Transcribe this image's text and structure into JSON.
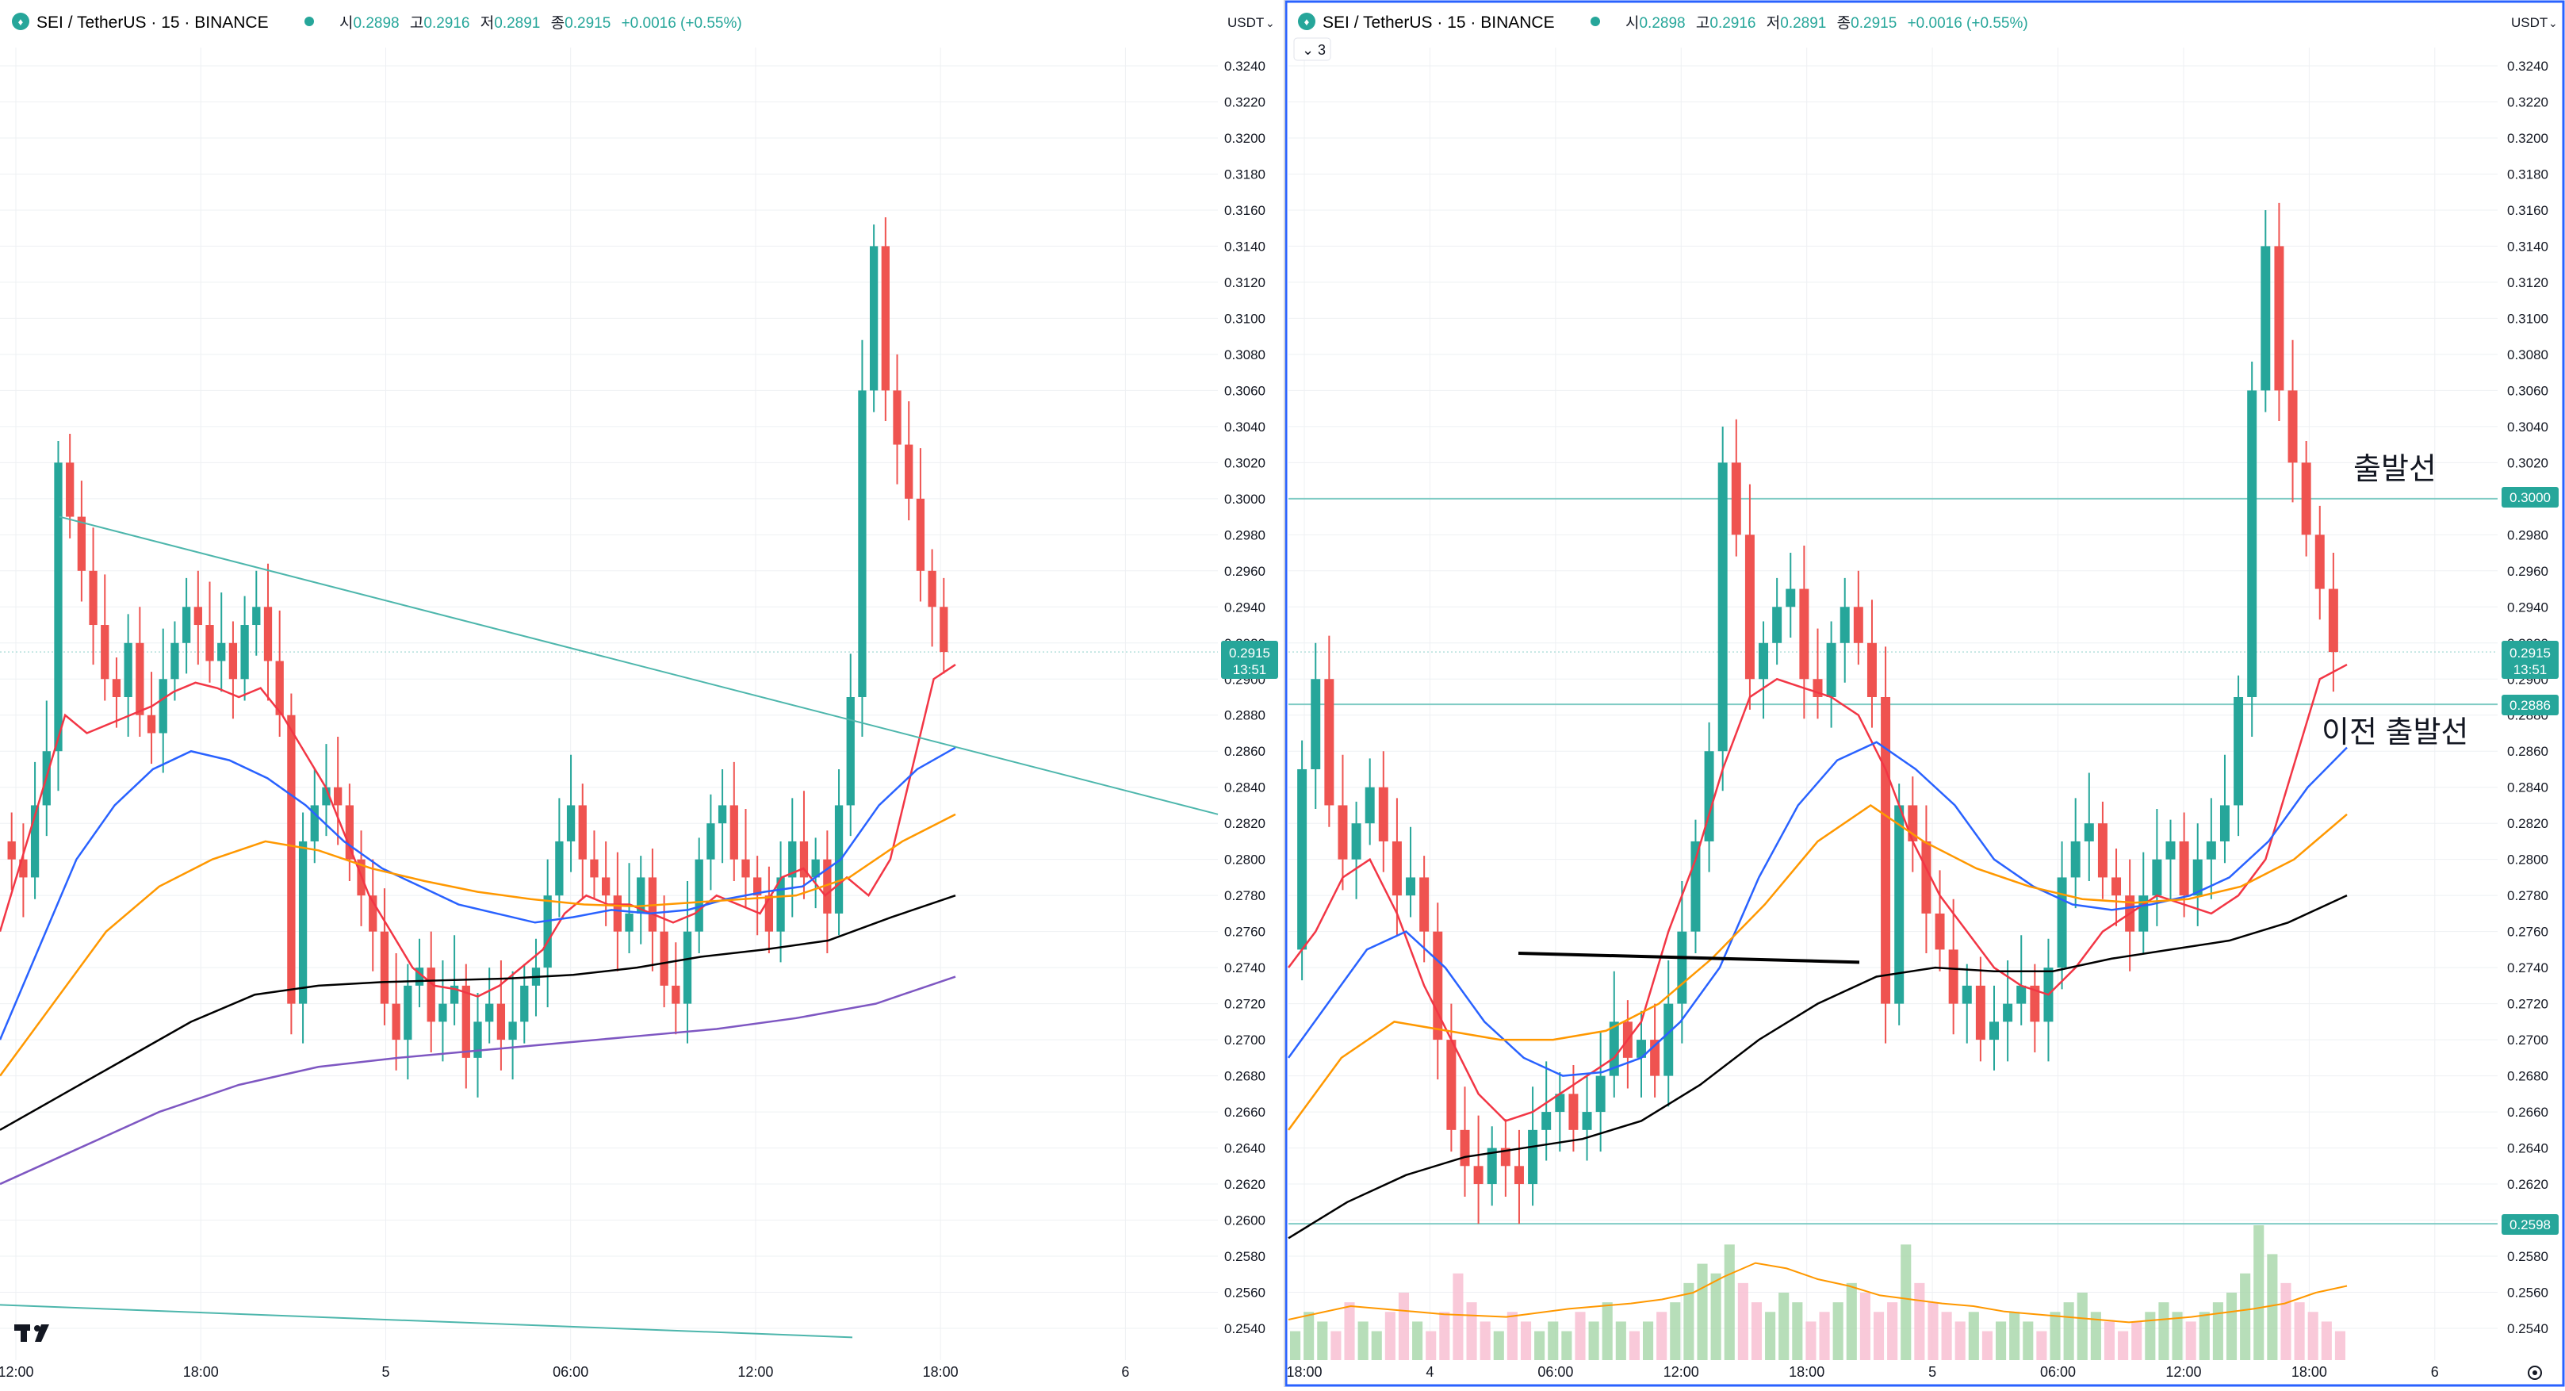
{
  "colors": {
    "up": "#26a69a",
    "down": "#ef5350",
    "grid": "#eef0f3",
    "axis_text": "#131722",
    "ma_red": "#f23645",
    "ma_blue": "#2962ff",
    "ma_orange": "#ff9800",
    "ma_black": "#000000",
    "ma_purple": "#7e57c2",
    "trend_line": "#4db6ac",
    "hline": "#80cbc4",
    "active_border": "#2962ff",
    "price_tag": "#26a69a"
  },
  "panes": [
    {
      "id": "left",
      "legend": {
        "symbol": "SEI",
        "pair": "TetherUS",
        "interval": "15",
        "exchange": "BINANCE",
        "open_label": "시",
        "open": "0.2898",
        "high_label": "고",
        "high": "0.2916",
        "low_label": "저",
        "low": "0.2891",
        "close_label": "종",
        "close": "0.2915",
        "change": "+0.0016 (+0.55%)"
      },
      "currency": "USDT",
      "price_tag": {
        "price": "0.2915",
        "countdown": "13:51"
      },
      "x_ticks": [
        "12:00",
        "18:00",
        "5",
        "06:00",
        "12:00",
        "18:00",
        "6"
      ],
      "logo": "tradingview-logo-icon"
    },
    {
      "id": "right",
      "legend": {
        "symbol": "SEI",
        "pair": "TetherUS",
        "interval": "15",
        "exchange": "BINANCE",
        "open_label": "시",
        "open": "0.2898",
        "high_label": "고",
        "high": "0.2916",
        "low_label": "저",
        "low": "0.2891",
        "close_label": "종",
        "close": "0.2915",
        "change": "+0.0016 (+0.55%)"
      },
      "indicator_toggle": "3",
      "currency": "USDT",
      "price_tag": {
        "price": "0.2915",
        "countdown": "13:51"
      },
      "level_tags": [
        "0.3000",
        "0.2886",
        "0.2598"
      ],
      "annotations": [
        "출발선",
        "이전 출발선"
      ],
      "x_ticks": [
        "18:00",
        "4",
        "06:00",
        "12:00",
        "18:00",
        "5",
        "06:00",
        "12:00",
        "18:00",
        "6"
      ]
    }
  ],
  "chart_data": [
    {
      "type": "candlestick",
      "pane": "left",
      "title": "SEI / TetherUS · 15 · BINANCE",
      "ylim": [
        0.253,
        0.326
      ],
      "y_ticks": [],
      "x_ticks": [
        "12:00",
        "18:00",
        "5",
        "06:00",
        "12:00",
        "18:00",
        "6"
      ],
      "price_line": 0.2915,
      "price_series": [
        0.281,
        0.28,
        0.279,
        0.283,
        0.286,
        0.302,
        0.299,
        0.296,
        0.293,
        0.29,
        0.289,
        0.292,
        0.288,
        0.287,
        0.29,
        0.292,
        0.294,
        0.293,
        0.291,
        0.292,
        0.29,
        0.293,
        0.294,
        0.291,
        0.288,
        0.272,
        0.281,
        0.283,
        0.284,
        0.283,
        0.28,
        0.278,
        0.276,
        0.272,
        0.27,
        0.273,
        0.274,
        0.271,
        0.272,
        0.273,
        0.269,
        0.271,
        0.272,
        0.27,
        0.271,
        0.273,
        0.274,
        0.278,
        0.281,
        0.283,
        0.28,
        0.279,
        0.278,
        0.276,
        0.277,
        0.279,
        0.276,
        0.273,
        0.272,
        0.276,
        0.28,
        0.282,
        0.283,
        0.28,
        0.279,
        0.278,
        0.276,
        0.279,
        0.281,
        0.279,
        0.28,
        0.277,
        0.283,
        0.289,
        0.306,
        0.314,
        0.306,
        0.303,
        0.3,
        0.296,
        0.294,
        0.2915
      ],
      "series": [
        {
          "name": "",
          "color_key": "ma_red",
          "values": [
            0.276,
            0.28,
            0.284,
            0.288,
            0.287,
            0.2875,
            0.288,
            0.2885,
            0.2893,
            0.2898,
            0.2895,
            0.289,
            0.2895,
            0.288,
            0.286,
            0.284,
            0.281,
            0.278,
            0.276,
            0.274,
            0.273,
            0.2728,
            0.2724,
            0.273,
            0.274,
            0.275,
            0.277,
            0.278,
            0.2775,
            0.2775,
            0.277,
            0.2765,
            0.277,
            0.278,
            0.2775,
            0.277,
            0.279,
            0.2795,
            0.278,
            0.279,
            0.278,
            0.28,
            0.285,
            0.29,
            0.2908
          ]
        },
        {
          "name": "",
          "color_key": "ma_blue",
          "values": [
            0.27,
            0.275,
            0.28,
            0.283,
            0.285,
            0.286,
            0.2855,
            0.2845,
            0.283,
            0.281,
            0.2795,
            0.2785,
            0.2775,
            0.277,
            0.2765,
            0.2768,
            0.2772,
            0.277,
            0.2772,
            0.2778,
            0.2782,
            0.2785,
            0.28,
            0.283,
            0.285,
            0.2862
          ]
        },
        {
          "name": "",
          "color_key": "ma_orange",
          "values": [
            0.268,
            0.272,
            0.276,
            0.2785,
            0.28,
            0.281,
            0.2805,
            0.2795,
            0.2788,
            0.2782,
            0.2778,
            0.2775,
            0.2774,
            0.2776,
            0.2778,
            0.278,
            0.279,
            0.281,
            0.2825
          ]
        },
        {
          "name": "",
          "color_key": "ma_black",
          "values": [
            0.265,
            0.267,
            0.269,
            0.271,
            0.2725,
            0.273,
            0.2732,
            0.2733,
            0.2734,
            0.2736,
            0.274,
            0.2746,
            0.275,
            0.2755,
            0.2768,
            0.278
          ]
        },
        {
          "name": "",
          "color_key": "ma_purple",
          "values": [
            0.262,
            0.264,
            0.266,
            0.2675,
            0.2685,
            0.269,
            0.2694,
            0.2698,
            0.2702,
            0.2706,
            0.2712,
            0.272,
            0.2735
          ]
        }
      ],
      "trend_lines": [
        {
          "from": [
            0.299
          ],
          "to": [
            0.2825
          ]
        },
        {
          "from": [
            0.2553
          ],
          "to": [
            0.2535
          ]
        }
      ]
    },
    {
      "type": "candlestick",
      "pane": "right",
      "title": "SEI / TetherUS · 15 · BINANCE",
      "ylim": [
        0.253,
        0.326
      ],
      "y_ticks": [
        "0.3240",
        "0.3220",
        "0.3200",
        "0.3180",
        "0.3160",
        "0.3140",
        "0.3120",
        "0.3100",
        "0.3080",
        "0.3060",
        "0.3040",
        "0.3020",
        "0.3000",
        "0.2980",
        "0.2960",
        "0.2940",
        "0.2920",
        "0.2900",
        "0.2880",
        "0.2860",
        "0.2840",
        "0.2820",
        "0.2800",
        "0.2780",
        "0.2760",
        "0.2740",
        "0.2720",
        "0.2700",
        "0.2680",
        "0.2660",
        "0.2640",
        "0.2620",
        "0.2600",
        "0.2580",
        "0.2560",
        "0.2540"
      ],
      "x_ticks": [
        "18:00",
        "4",
        "06:00",
        "12:00",
        "18:00",
        "5",
        "06:00",
        "12:00",
        "18:00",
        "6"
      ],
      "price_line": 0.2915,
      "horizontal_levels": [
        0.3,
        0.2886,
        0.2598
      ],
      "level_annotations": [
        {
          "level": 0.3,
          "text": "출발선"
        },
        {
          "level": 0.2886,
          "text": "이전 출발선"
        }
      ],
      "price_series": [
        0.275,
        0.285,
        0.29,
        0.283,
        0.28,
        0.282,
        0.284,
        0.281,
        0.278,
        0.279,
        0.276,
        0.27,
        0.265,
        0.263,
        0.262,
        0.264,
        0.263,
        0.262,
        0.265,
        0.266,
        0.267,
        0.265,
        0.266,
        0.268,
        0.271,
        0.269,
        0.27,
        0.268,
        0.272,
        0.276,
        0.281,
        0.286,
        0.302,
        0.298,
        0.29,
        0.292,
        0.294,
        0.295,
        0.29,
        0.289,
        0.292,
        0.294,
        0.292,
        0.289,
        0.272,
        0.283,
        0.281,
        0.277,
        0.275,
        0.272,
        0.273,
        0.27,
        0.271,
        0.272,
        0.273,
        0.271,
        0.274,
        0.279,
        0.281,
        0.282,
        0.279,
        0.278,
        0.276,
        0.278,
        0.28,
        0.281,
        0.278,
        0.28,
        0.281,
        0.283,
        0.289,
        0.306,
        0.314,
        0.306,
        0.302,
        0.298,
        0.295,
        0.2915
      ],
      "series": [
        {
          "name": "",
          "color_key": "ma_red",
          "values": [
            0.274,
            0.276,
            0.279,
            0.28,
            0.277,
            0.273,
            0.27,
            0.267,
            0.2655,
            0.266,
            0.267,
            0.268,
            0.269,
            0.271,
            0.276,
            0.28,
            0.285,
            0.289,
            0.29,
            0.2895,
            0.289,
            0.288,
            0.285,
            0.281,
            0.278,
            0.276,
            0.274,
            0.273,
            0.2725,
            0.274,
            0.276,
            0.277,
            0.278,
            0.2775,
            0.277,
            0.278,
            0.28,
            0.285,
            0.29,
            0.2908
          ]
        },
        {
          "name": "",
          "color_key": "ma_blue",
          "values": [
            0.269,
            0.272,
            0.275,
            0.276,
            0.274,
            0.271,
            0.269,
            0.268,
            0.2682,
            0.269,
            0.271,
            0.274,
            0.279,
            0.283,
            0.2855,
            0.2865,
            0.285,
            0.283,
            0.28,
            0.2785,
            0.2775,
            0.2772,
            0.2775,
            0.278,
            0.279,
            0.281,
            0.284,
            0.2862
          ]
        },
        {
          "name": "",
          "color_key": "ma_orange",
          "values": [
            0.265,
            0.269,
            0.271,
            0.2705,
            0.27,
            0.27,
            0.2705,
            0.272,
            0.2745,
            0.2775,
            0.281,
            0.283,
            0.281,
            0.2795,
            0.2785,
            0.2778,
            0.2776,
            0.2778,
            0.2785,
            0.28,
            0.2825
          ]
        },
        {
          "name": "",
          "color_key": "ma_black",
          "values": [
            0.259,
            0.261,
            0.2625,
            0.2635,
            0.264,
            0.2645,
            0.2655,
            0.2675,
            0.27,
            0.272,
            0.2735,
            0.274,
            0.2738,
            0.2738,
            0.2745,
            0.275,
            0.2755,
            0.2765,
            0.278
          ]
        }
      ],
      "drawn_line": {
        "from": 0.2748,
        "to": 0.2743
      },
      "volume": [
        3,
        5,
        4,
        3,
        6,
        4,
        3,
        5,
        7,
        4,
        3,
        5,
        9,
        6,
        4,
        3,
        5,
        4,
        3,
        4,
        3,
        5,
        4,
        6,
        4,
        3,
        4,
        5,
        6,
        8,
        10,
        9,
        12,
        8,
        6,
        5,
        7,
        6,
        4,
        5,
        6,
        8,
        7,
        5,
        6,
        12,
        8,
        6,
        5,
        4,
        5,
        3,
        4,
        5,
        4,
        3,
        5,
        6,
        7,
        5,
        4,
        3,
        4,
        5,
        6,
        5,
        4,
        5,
        6,
        7,
        9,
        14,
        11,
        8,
        6,
        5,
        4,
        3
      ],
      "volume_ma": [
        0.3,
        0.35,
        0.4,
        0.38,
        0.36,
        0.34,
        0.33,
        0.32,
        0.35,
        0.38,
        0.4,
        0.42,
        0.45,
        0.5,
        0.62,
        0.72,
        0.68,
        0.6,
        0.55,
        0.48,
        0.45,
        0.42,
        0.4,
        0.36,
        0.34,
        0.32,
        0.3,
        0.28,
        0.3,
        0.32,
        0.35,
        0.38,
        0.42,
        0.5,
        0.55
      ]
    }
  ]
}
